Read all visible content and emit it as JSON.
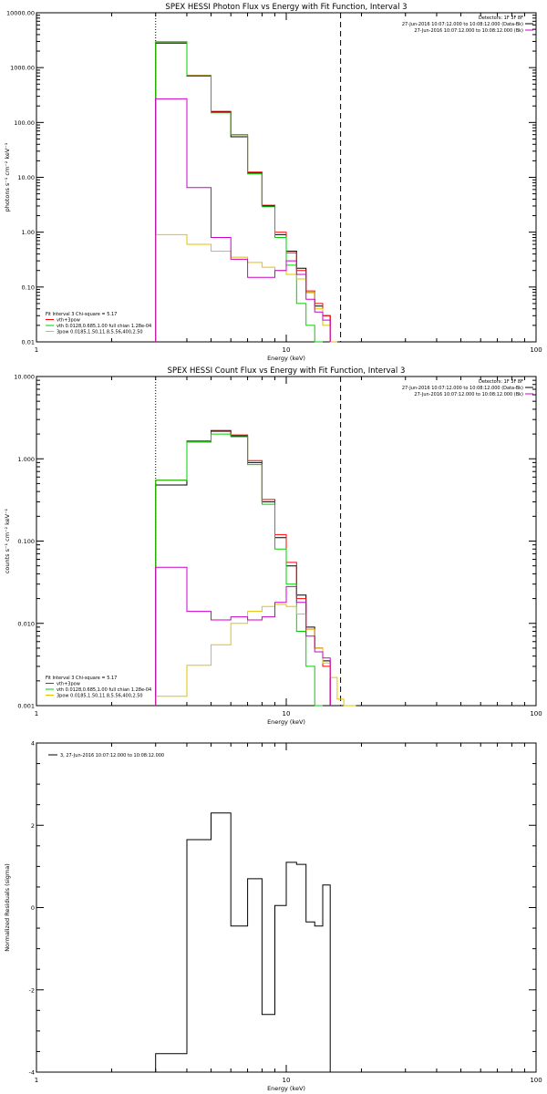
{
  "chart_data": [
    {
      "type": "line",
      "title": "SPEX HESSI Photon Flux vs Energy with Fit Function, Interval 3",
      "xlabel": "Energy (keV)",
      "ylabel": "photons s⁻¹ cm⁻² keV⁻¹",
      "xscale": "log",
      "yscale": "log",
      "xlim": [
        1,
        100
      ],
      "ylim": [
        0.01,
        10000
      ],
      "xtick_labels": [
        "1",
        "10",
        "100"
      ],
      "ytick_labels": [
        "0.01",
        "0.10",
        "1.00",
        "10.00",
        "100.00",
        "1000.00",
        "10000.00"
      ],
      "legend_top": [
        "Detectors: 1F 3F 8F",
        "27-Jun-2016 10:07:12.000 to 10:08:12.000 (Data-Bk)",
        "27-Jun-2016 10:07:12.000 to 10:08:12.000 (Bk)"
      ],
      "legend_bottom": [
        "Fit Interval 3   Chi-square = 5.17",
        "vth+3pow",
        "vth 0.0128,0.685,1.00  full chian 1.28e-04",
        "3pow 0.0185,1.50,11.8,5.56,400,2.50"
      ],
      "vlines_dotted": [
        3
      ],
      "vlines_dashed": [
        16.5
      ],
      "edges": [
        3,
        4,
        5,
        6,
        7,
        8,
        9,
        10,
        11,
        12,
        13,
        14,
        15,
        16,
        17,
        18
      ],
      "series": [
        {
          "name": "Data-Bk",
          "color": "#000000",
          "values": [
            2800,
            700,
            155,
            55,
            12,
            3.0,
            0.9,
            0.45,
            0.22,
            0.08,
            0.045,
            0.03
          ]
        },
        {
          "name": "vth+3pow",
          "color": "#ff0000",
          "values": [
            2950,
            720,
            160,
            60,
            12.5,
            3.1,
            1.0,
            0.42,
            0.2,
            0.085,
            0.05,
            0.03
          ]
        },
        {
          "name": "vth",
          "color": "#00d000",
          "values": [
            2950,
            710,
            150,
            60,
            11.5,
            2.9,
            0.8,
            0.25,
            0.05,
            0.02,
            0.01
          ]
        },
        {
          "name": "3pow",
          "color": "#e6c000",
          "values": [
            0.9,
            0.6,
            0.45,
            0.35,
            0.28,
            0.23,
            0.2,
            0.17,
            0.14,
            0.08,
            0.04,
            0.02,
            0.01
          ]
        },
        {
          "name": "Bk",
          "color": "#cc00cc",
          "values": [
            270,
            6.5,
            0.8,
            0.32,
            0.15,
            0.15,
            0.2,
            0.3,
            0.17,
            0.06,
            0.035,
            0.025
          ]
        }
      ]
    },
    {
      "type": "line",
      "title": "SPEX HESSI Count Flux vs Energy with Fit Function, Interval 3",
      "xlabel": "Energy (keV)",
      "ylabel": "counts s⁻¹ cm⁻² keV⁻¹",
      "xscale": "log",
      "yscale": "log",
      "xlim": [
        1,
        100
      ],
      "ylim": [
        0.001,
        10
      ],
      "xtick_labels": [
        "1",
        "10",
        "100"
      ],
      "ytick_labels": [
        "0.001",
        "0.010",
        "0.100",
        "1.000",
        "10.000"
      ],
      "legend_top": [
        "Detectors: 1F 3F 8F",
        "27-Jun-2016 10:07:12.000 to 10:08:12.000 (Data-Bk)",
        "27-Jun-2016 10:07:12.000 to 10:08:12.000 (Bk)"
      ],
      "legend_bottom": [
        "Fit Interval 3   Chi-square = 5.17",
        "vth+3pow",
        "vth 0.0128,0.685,1.00  full chian 1.28e-04",
        "3pow 0.0185,1.50,11.8,5.56,400,2.50"
      ],
      "vlines_dotted": [
        3
      ],
      "vlines_dashed": [
        16.5
      ],
      "edges": [
        3,
        4,
        5,
        6,
        7,
        8,
        9,
        10,
        11,
        12,
        13,
        14,
        15,
        16,
        17,
        18,
        19
      ],
      "series": [
        {
          "name": "Data-Bk",
          "color": "#000000",
          "values": [
            0.48,
            1.6,
            2.2,
            1.9,
            0.9,
            0.3,
            0.11,
            0.05,
            0.022,
            0.009,
            0.005,
            0.0035
          ]
        },
        {
          "name": "vth+3pow",
          "color": "#ff0000",
          "values": [
            0.55,
            1.65,
            2.15,
            1.95,
            0.95,
            0.32,
            0.12,
            0.055,
            0.02,
            0.0085,
            0.005,
            0.003
          ]
        },
        {
          "name": "vth",
          "color": "#00d000",
          "values": [
            0.55,
            1.6,
            2.0,
            1.85,
            0.85,
            0.28,
            0.08,
            0.03,
            0.008,
            0.003,
            0.001
          ]
        },
        {
          "name": "3pow",
          "color": "#e6c000",
          "values": [
            0.0013,
            0.0031,
            0.0055,
            0.01,
            0.014,
            0.016,
            0.017,
            0.016,
            0.013,
            0.0085,
            0.005,
            0.0033,
            0.0022,
            0.0012,
            0.001,
            0.001
          ]
        },
        {
          "name": "Bk",
          "color": "#cc00cc",
          "values": [
            0.048,
            0.014,
            0.011,
            0.012,
            0.011,
            0.012,
            0.018,
            0.028,
            0.018,
            0.007,
            0.0045,
            0.0038
          ]
        }
      ]
    },
    {
      "type": "line",
      "title": "",
      "xlabel": "Energy (keV)",
      "ylabel": "Normalized Residuals (sigma)",
      "xscale": "log",
      "yscale": "linear",
      "xlim": [
        1,
        100
      ],
      "ylim": [
        -4,
        4
      ],
      "xtick_labels": [
        "1",
        "10",
        "100"
      ],
      "ytick_labels": [
        "-4",
        "-2",
        "0",
        "2",
        "4"
      ],
      "legend_top": [
        "3, 27-Jun-2016 10:07:12.000 to 10:08:12.000"
      ],
      "edges": [
        3,
        4,
        5,
        6,
        7,
        8,
        9,
        10,
        11,
        12,
        13,
        14,
        15,
        16
      ],
      "series": [
        {
          "name": "3, 27-Jun-2016 10:07:12.000 to 10:08:12.000",
          "color": "#000000",
          "values": [
            -3.55,
            1.65,
            2.3,
            -0.45,
            0.7,
            -2.6,
            0.05,
            1.1,
            1.05,
            -0.35,
            -0.45,
            0.55
          ]
        }
      ]
    }
  ]
}
